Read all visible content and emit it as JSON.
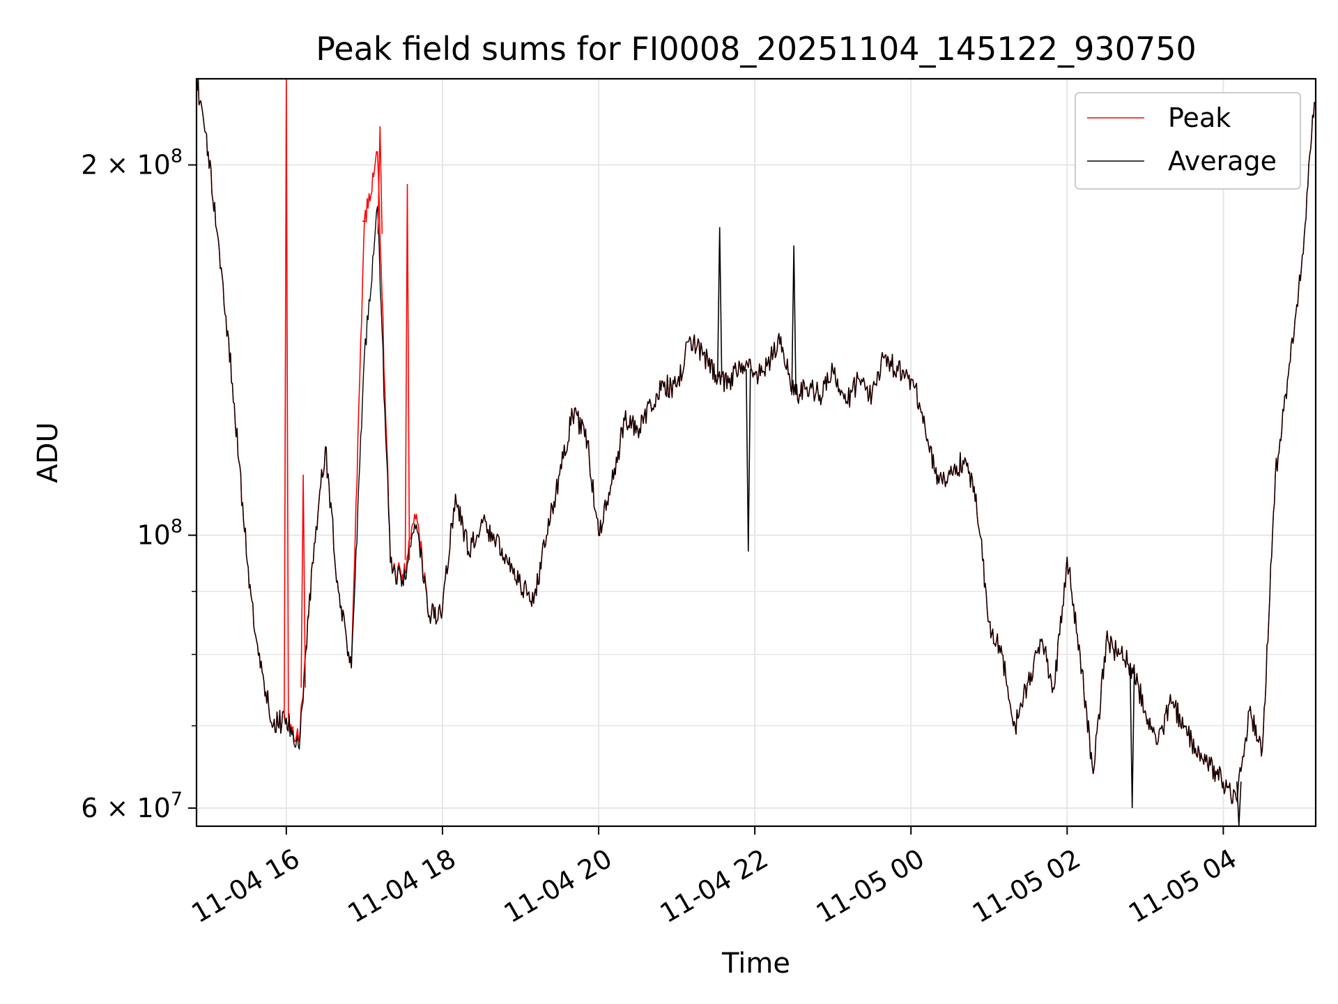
{
  "chart_data": {
    "type": "line",
    "title": "Peak field sums for FI0008_20251104_145122_930750",
    "xlabel": "Time",
    "ylabel": "ADU",
    "y_scale": "log",
    "ylim": [
      58000000,
      235000000
    ],
    "xlim": [
      "2025-11-04 14:51",
      "2025-11-05 05:11"
    ],
    "grid": true,
    "legend": "top-right",
    "x_ticks": [
      {
        "value": "2025-11-04 16:00",
        "label": "11-04 16"
      },
      {
        "value": "2025-11-04 18:00",
        "label": "11-04 18"
      },
      {
        "value": "2025-11-04 20:00",
        "label": "11-04 20"
      },
      {
        "value": "2025-11-04 22:00",
        "label": "11-04 22"
      },
      {
        "value": "2025-11-05 00:00",
        "label": "11-05 00"
      },
      {
        "value": "2025-11-05 02:00",
        "label": "11-05 02"
      },
      {
        "value": "2025-11-05 04:00",
        "label": "11-05 04"
      }
    ],
    "y_ticks": [
      {
        "value": 60000000,
        "base": "6 × 10",
        "exp": "7"
      },
      {
        "value": 100000000,
        "base": "10",
        "exp": "8"
      },
      {
        "value": 200000000,
        "base": "2 × 10",
        "exp": "8"
      }
    ],
    "y_minor_ticks": [
      70000000,
      80000000,
      90000000
    ],
    "x": [
      "2025-11-04 14:51",
      "2025-11-04 15:00",
      "2025-11-04 15:10",
      "2025-11-04 15:20",
      "2025-11-04 15:30",
      "2025-11-04 15:40",
      "2025-11-04 15:50",
      "2025-11-04 16:00",
      "2025-11-04 16:10",
      "2025-11-04 16:20",
      "2025-11-04 16:30",
      "2025-11-04 16:40",
      "2025-11-04 16:50",
      "2025-11-04 17:00",
      "2025-11-04 17:10",
      "2025-11-04 17:20",
      "2025-11-04 17:30",
      "2025-11-04 17:40",
      "2025-11-04 17:50",
      "2025-11-04 18:00",
      "2025-11-04 18:10",
      "2025-11-04 18:20",
      "2025-11-04 18:30",
      "2025-11-04 18:40",
      "2025-11-04 18:50",
      "2025-11-04 19:00",
      "2025-11-04 19:10",
      "2025-11-04 19:20",
      "2025-11-04 19:30",
      "2025-11-04 19:40",
      "2025-11-04 19:50",
      "2025-11-04 20:00",
      "2025-11-04 20:10",
      "2025-11-04 20:20",
      "2025-11-04 20:30",
      "2025-11-04 20:40",
      "2025-11-04 20:50",
      "2025-11-04 21:00",
      "2025-11-04 21:10",
      "2025-11-04 21:20",
      "2025-11-04 21:30",
      "2025-11-04 21:40",
      "2025-11-04 21:50",
      "2025-11-04 22:00",
      "2025-11-04 22:10",
      "2025-11-04 22:20",
      "2025-11-04 22:30",
      "2025-11-04 22:40",
      "2025-11-04 22:50",
      "2025-11-04 23:00",
      "2025-11-04 23:10",
      "2025-11-04 23:20",
      "2025-11-04 23:30",
      "2025-11-04 23:40",
      "2025-11-04 23:50",
      "2025-11-05 00:00",
      "2025-11-05 00:10",
      "2025-11-05 00:20",
      "2025-11-05 00:30",
      "2025-11-05 00:40",
      "2025-11-05 00:50",
      "2025-11-05 01:00",
      "2025-11-05 01:10",
      "2025-11-05 01:20",
      "2025-11-05 01:30",
      "2025-11-05 01:40",
      "2025-11-05 01:50",
      "2025-11-05 02:00",
      "2025-11-05 02:10",
      "2025-11-05 02:20",
      "2025-11-05 02:30",
      "2025-11-05 02:40",
      "2025-11-05 02:50",
      "2025-11-05 03:00",
      "2025-11-05 03:10",
      "2025-11-05 03:20",
      "2025-11-05 03:30",
      "2025-11-05 03:40",
      "2025-11-05 03:50",
      "2025-11-05 04:00",
      "2025-11-05 04:10",
      "2025-11-05 04:20",
      "2025-11-05 04:30",
      "2025-11-05 04:40",
      "2025-11-05 04:50",
      "2025-11-05 05:00",
      "2025-11-05 05:10"
    ],
    "series": [
      {
        "name": "Peak",
        "color": "#ff0000",
        "values": [
          235000000,
          205000000,
          165000000,
          128000000,
          95000000,
          78000000,
          70000000,
          71000000,
          68000000,
          95000000,
          118000000,
          90000000,
          78000000,
          180000000,
          205000000,
          95000000,
          92000000,
          104000000,
          86000000,
          87000000,
          108000000,
          97000000,
          103000000,
          99000000,
          95000000,
          91000000,
          88000000,
          100000000,
          112000000,
          125000000,
          122000000,
          100000000,
          110000000,
          124000000,
          122000000,
          128000000,
          132000000,
          132000000,
          145000000,
          140000000,
          135000000,
          133000000,
          138000000,
          135000000,
          138000000,
          145000000,
          130000000,
          132000000,
          130000000,
          136000000,
          128000000,
          134000000,
          130000000,
          140000000,
          136000000,
          134000000,
          125000000,
          110000000,
          112000000,
          115000000,
          108000000,
          85000000,
          80000000,
          70000000,
          76000000,
          82000000,
          75000000,
          96000000,
          80000000,
          64000000,
          82000000,
          80000000,
          78000000,
          72000000,
          68000000,
          73000000,
          70000000,
          66000000,
          65000000,
          63000000,
          61000000,
          72000000,
          67000000,
          112000000,
          135000000,
          165000000,
          225000000
        ]
      },
      {
        "name": "Average",
        "color": "#000000",
        "values": [
          235000000,
          205000000,
          165000000,
          128000000,
          95000000,
          78000000,
          70000000,
          71000000,
          67000000,
          95000000,
          118000000,
          90000000,
          78000000,
          140000000,
          185000000,
          95000000,
          91000000,
          102000000,
          86000000,
          87000000,
          108000000,
          97000000,
          103000000,
          99000000,
          95000000,
          91000000,
          88000000,
          100000000,
          112000000,
          125000000,
          122000000,
          100000000,
          110000000,
          124000000,
          122000000,
          128000000,
          132000000,
          132000000,
          145000000,
          140000000,
          135000000,
          133000000,
          138000000,
          135000000,
          138000000,
          145000000,
          130000000,
          132000000,
          130000000,
          136000000,
          128000000,
          134000000,
          130000000,
          140000000,
          136000000,
          134000000,
          125000000,
          110000000,
          112000000,
          115000000,
          108000000,
          85000000,
          80000000,
          70000000,
          76000000,
          82000000,
          75000000,
          96000000,
          80000000,
          64000000,
          82000000,
          80000000,
          78000000,
          72000000,
          68000000,
          73000000,
          70000000,
          66000000,
          65000000,
          63000000,
          61000000,
          72000000,
          67000000,
          112000000,
          135000000,
          165000000,
          225000000
        ]
      }
    ],
    "spikes": [
      {
        "series": "Peak",
        "x": "2025-11-04 16:00",
        "value": 235000000
      },
      {
        "series": "Peak",
        "x": "2025-11-04 16:13",
        "value": 112000000
      },
      {
        "series": "Peak",
        "x": "2025-11-04 17:00",
        "value": 180000000
      },
      {
        "series": "Peak",
        "x": "2025-11-04 17:12",
        "value": 215000000
      },
      {
        "series": "Peak",
        "x": "2025-11-04 17:33",
        "value": 193000000
      },
      {
        "series": "Average",
        "x": "2025-11-04 21:33",
        "value": 178000000
      },
      {
        "series": "Average",
        "x": "2025-11-04 21:55",
        "value": 97000000
      },
      {
        "series": "Average",
        "x": "2025-11-04 22:30",
        "value": 172000000
      },
      {
        "series": "Average",
        "x": "2025-11-05 02:50",
        "value": 60000000
      },
      {
        "series": "Average",
        "x": "2025-11-05 04:12",
        "value": 58000000
      }
    ]
  }
}
